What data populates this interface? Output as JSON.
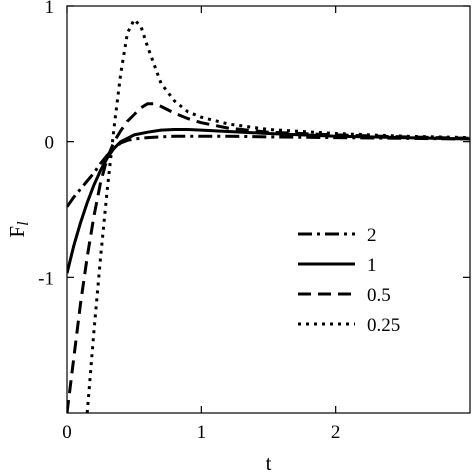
{
  "chart_data": {
    "type": "line",
    "title": "",
    "xlabel": "t",
    "ylabel": "F_l",
    "ylabel_main": "F",
    "ylabel_sub": "l",
    "xlim": [
      0,
      3
    ],
    "ylim": [
      -2,
      1
    ],
    "x_ticks": [
      0,
      1,
      2
    ],
    "x_tick_labels": [
      "0",
      "1",
      "2"
    ],
    "y_ticks": [
      1,
      0,
      -1
    ],
    "y_tick_labels": [
      "1",
      "0",
      "-1"
    ],
    "grid": false,
    "legend_position": "lower-right",
    "series": [
      {
        "name": "2",
        "style": "dash-dot",
        "x": [
          0,
          0.05,
          0.1,
          0.15,
          0.2,
          0.25,
          0.3,
          0.35,
          0.4,
          0.45,
          0.5,
          0.6,
          0.7,
          0.8,
          1.0,
          1.2,
          1.5,
          2.0,
          2.5,
          3.0
        ],
        "y": [
          -0.48,
          -0.41,
          -0.35,
          -0.29,
          -0.23,
          -0.16,
          -0.1,
          -0.05,
          -0.01,
          0.01,
          0.02,
          0.03,
          0.035,
          0.04,
          0.04,
          0.04,
          0.035,
          0.03,
          0.025,
          0.02
        ]
      },
      {
        "name": "1",
        "style": "solid",
        "x": [
          0,
          0.05,
          0.1,
          0.15,
          0.2,
          0.25,
          0.3,
          0.35,
          0.4,
          0.5,
          0.6,
          0.7,
          0.8,
          0.9,
          1.0,
          1.2,
          1.5,
          2.0,
          2.5,
          3.0
        ],
        "y": [
          -0.97,
          -0.77,
          -0.6,
          -0.45,
          -0.32,
          -0.21,
          -0.12,
          -0.05,
          0.0,
          0.05,
          0.07,
          0.085,
          0.09,
          0.09,
          0.085,
          0.075,
          0.06,
          0.04,
          0.03,
          0.02
        ]
      },
      {
        "name": "0.5",
        "style": "dashed",
        "x": [
          0,
          0.05,
          0.1,
          0.15,
          0.2,
          0.25,
          0.3,
          0.35,
          0.4,
          0.45,
          0.5,
          0.55,
          0.6,
          0.65,
          0.7,
          0.8,
          0.9,
          1.0,
          1.2,
          1.5,
          2.0,
          2.5,
          3.0
        ],
        "y": [
          -2.0,
          -1.6,
          -1.2,
          -0.85,
          -0.55,
          -0.3,
          -0.12,
          0.0,
          0.08,
          0.15,
          0.2,
          0.25,
          0.28,
          0.28,
          0.26,
          0.21,
          0.17,
          0.14,
          0.1,
          0.07,
          0.05,
          0.035,
          0.025
        ]
      },
      {
        "name": "0.25",
        "style": "dotted",
        "x": [
          0.15,
          0.2,
          0.25,
          0.3,
          0.35,
          0.4,
          0.45,
          0.5,
          0.55,
          0.6,
          0.7,
          0.8,
          0.9,
          1.0,
          1.2,
          1.5,
          2.0,
          2.5,
          3.0
        ],
        "y": [
          -2.0,
          -1.4,
          -0.85,
          -0.35,
          0.1,
          0.5,
          0.8,
          0.9,
          0.85,
          0.7,
          0.43,
          0.3,
          0.22,
          0.18,
          0.13,
          0.09,
          0.06,
          0.04,
          0.03
        ]
      }
    ]
  }
}
